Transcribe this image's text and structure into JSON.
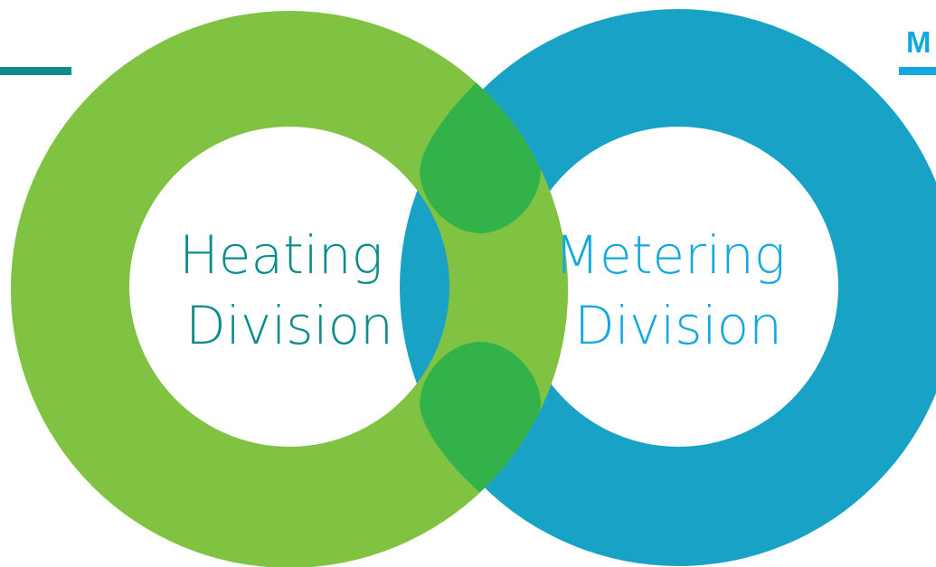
{
  "colors": {
    "heating_ring": "#80c342",
    "metering_ring": "#17a2c6",
    "overlap": "#33b24a",
    "heating_text": "#0d8c8c",
    "metering_text": "#14a8e0",
    "top_left_rule": "#0d8c8c",
    "top_right_rule": "#14a8e0",
    "background": "#ffffff"
  },
  "heating": {
    "line1": "Heating",
    "line2": "Division"
  },
  "metering": {
    "line1": "Metering",
    "line2": "Division"
  },
  "corner": {
    "label": "M"
  }
}
